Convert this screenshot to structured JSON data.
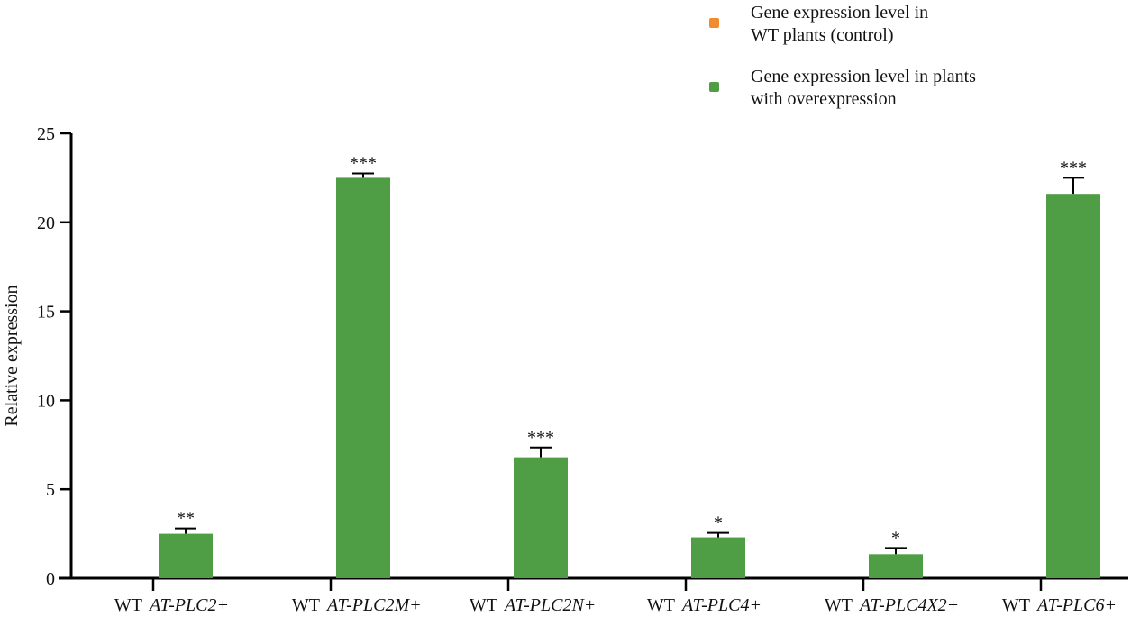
{
  "chart_data": {
    "type": "bar",
    "title": "",
    "xlabel": "",
    "ylabel": "Relative expression",
    "ylim": [
      0,
      25
    ],
    "yticks": [
      0,
      5,
      10,
      15,
      20,
      25
    ],
    "grid": false,
    "legend_placement": "top-right",
    "categories": [
      "AT-PLC2+",
      "AT-PLC2M+",
      "AT-PLC2N+",
      "AT-PLC4+",
      "AT-PLC4X2+",
      "AT-PLC6+"
    ],
    "group_prefix": "WT",
    "series": [
      {
        "name": "Gene expression level in WT plants (control)",
        "color": "#f28a2e",
        "values": [
          0,
          0,
          0,
          0,
          0,
          0
        ]
      },
      {
        "name": "Gene expression level in plants with overexpression",
        "color": "#4f9e45",
        "values": [
          2.5,
          22.5,
          6.8,
          2.3,
          1.35,
          21.6
        ],
        "errors": [
          0.3,
          0.25,
          0.55,
          0.25,
          0.35,
          0.9
        ]
      }
    ],
    "significance": [
      "**",
      "***",
      "***",
      "*",
      "*",
      "***"
    ]
  }
}
